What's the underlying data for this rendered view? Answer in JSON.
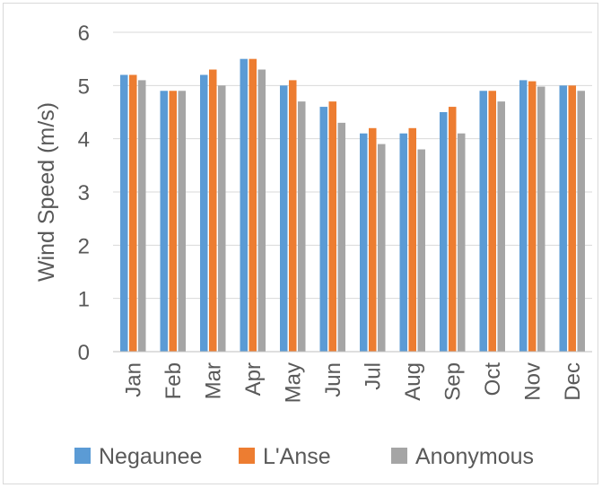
{
  "chart_data": {
    "type": "bar",
    "title": "",
    "xlabel": "",
    "ylabel": "Wind Speed (m/s)",
    "ylim": [
      0,
      6
    ],
    "yticks": [
      0,
      1,
      2,
      3,
      4,
      5,
      6
    ],
    "grid": true,
    "legend_position": "bottom",
    "categories": [
      "Jan",
      "Feb",
      "Mar",
      "Apr",
      "May",
      "Jun",
      "Jul",
      "Aug",
      "Sep",
      "Oct",
      "Nov",
      "Dec"
    ],
    "series": [
      {
        "name": "Negaunee",
        "color": "#5b9bd5",
        "values": [
          5.2,
          4.9,
          5.2,
          5.5,
          5.0,
          4.6,
          4.1,
          4.1,
          4.5,
          4.9,
          5.1,
          5.0
        ]
      },
      {
        "name": "L'Anse",
        "color": "#ed7d31",
        "values": [
          5.2,
          4.9,
          5.3,
          5.5,
          5.1,
          4.7,
          4.2,
          4.2,
          4.6,
          4.9,
          5.08,
          5.0
        ]
      },
      {
        "name": "Anonymous",
        "color": "#a5a5a5",
        "values": [
          5.1,
          4.9,
          5.0,
          5.3,
          4.7,
          4.3,
          3.9,
          3.8,
          4.1,
          4.7,
          4.98,
          4.9
        ]
      }
    ]
  }
}
